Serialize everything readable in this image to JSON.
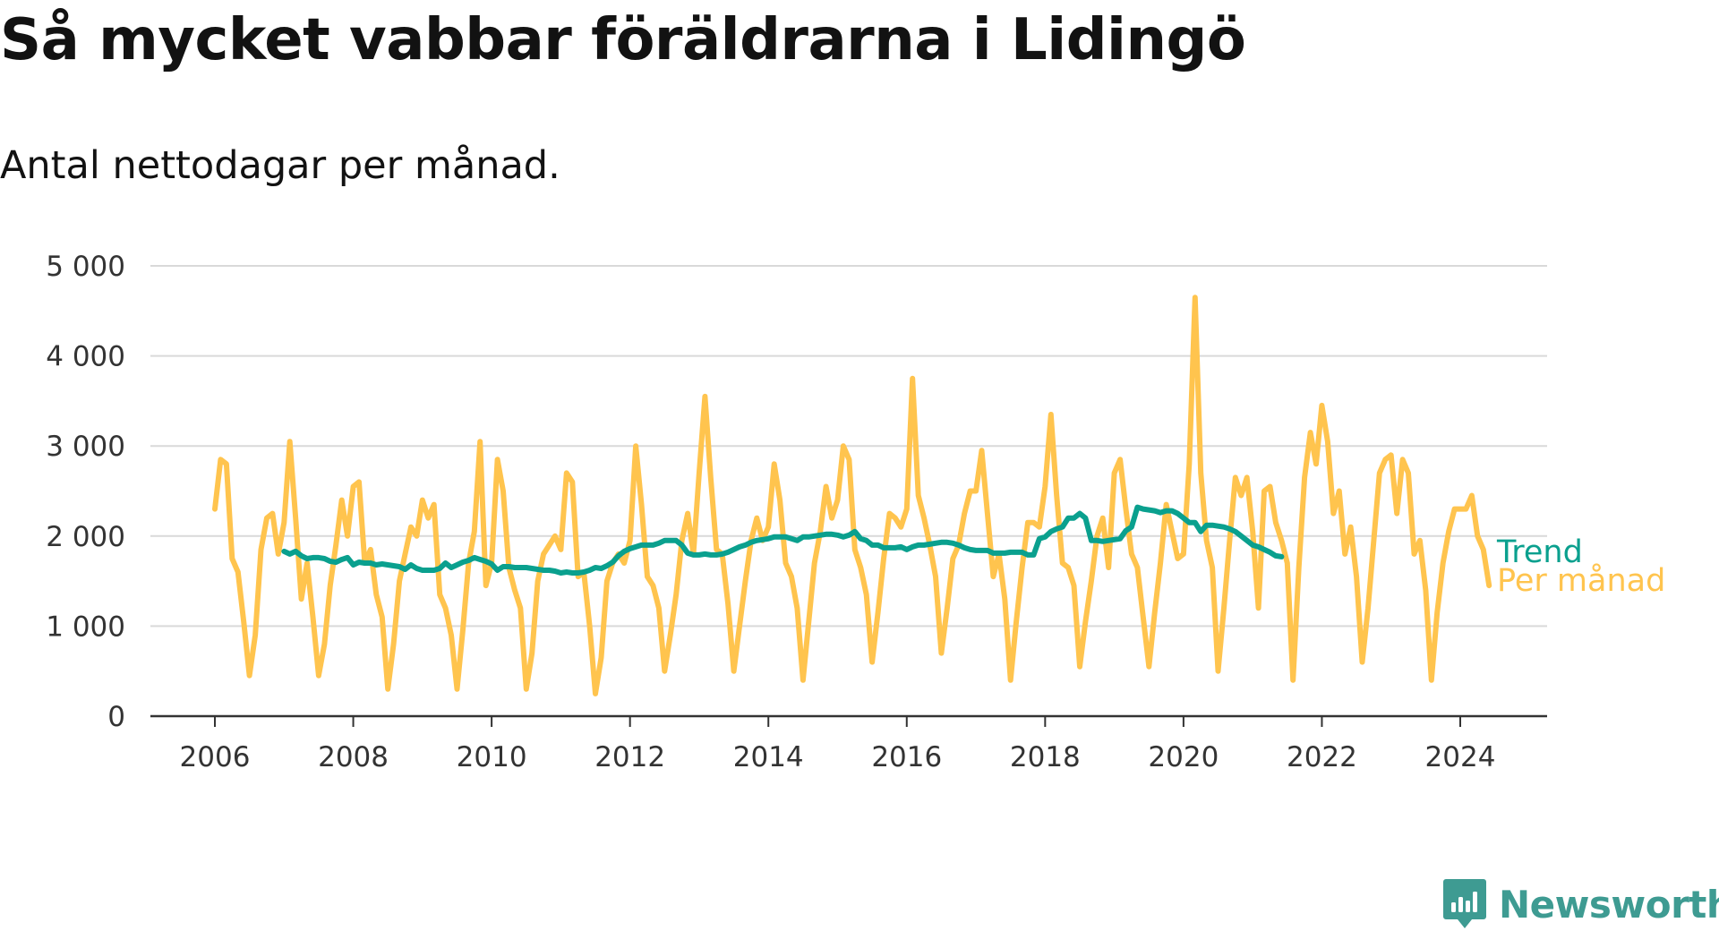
{
  "title": "Så mycket vabbar föräldrarna i Lidingö",
  "subtitle": "Antal nettodagar per månad.",
  "brand": {
    "name": "Newsworthy",
    "icon": "bar-chart-badge-icon",
    "color": "#3e9b92"
  },
  "chart_data": {
    "type": "line",
    "ylim": [
      0,
      5000
    ],
    "y_ticks": [
      0,
      1000,
      2000,
      3000,
      4000,
      5000
    ],
    "y_tick_labels": [
      "0",
      "1 000",
      "2 000",
      "3 000",
      "4 000",
      "5 000"
    ],
    "x_ticks": [
      2006,
      2008,
      2010,
      2012,
      2014,
      2016,
      2018,
      2020,
      2022,
      2024
    ],
    "x_tick_labels": [
      "2006",
      "2008",
      "2010",
      "2012",
      "2014",
      "2016",
      "2018",
      "2020",
      "2022",
      "2024"
    ],
    "grid": true,
    "legend": "end-of-line labels",
    "series": [
      {
        "name": "Per månad",
        "color": "#ffc44e",
        "start": "2006-01",
        "values": [
          2300,
          2850,
          2800,
          1750,
          1600,
          1050,
          450,
          900,
          1850,
          2200,
          2250,
          1800,
          2150,
          3050,
          2200,
          1300,
          1700,
          1100,
          450,
          800,
          1450,
          1900,
          2400,
          2000,
          2550,
          2600,
          1700,
          1850,
          1350,
          1100,
          300,
          800,
          1500,
          1800,
          2100,
          2000,
          2400,
          2200,
          2350,
          1350,
          1200,
          900,
          300,
          950,
          1700,
          2050,
          3050,
          1450,
          1700,
          2850,
          2500,
          1650,
          1400,
          1200,
          300,
          700,
          1500,
          1800,
          1900,
          2000,
          1850,
          2700,
          2600,
          1550,
          1600,
          1000,
          250,
          650,
          1500,
          1700,
          1800,
          1700,
          1950,
          3000,
          2350,
          1550,
          1450,
          1200,
          500,
          900,
          1350,
          1950,
          2250,
          1800,
          2700,
          3550,
          2650,
          1850,
          1800,
          1250,
          500,
          1000,
          1500,
          1950,
          2200,
          1950,
          2100,
          2800,
          2400,
          1700,
          1550,
          1200,
          400,
          1050,
          1700,
          2050,
          2550,
          2200,
          2400,
          3000,
          2850,
          1850,
          1650,
          1350,
          600,
          1150,
          1750,
          2250,
          2200,
          2100,
          2300,
          3750,
          2450,
          2200,
          1900,
          1550,
          700,
          1200,
          1750,
          1900,
          2250,
          2500,
          2500,
          2950,
          2250,
          1550,
          1800,
          1300,
          400,
          1050,
          1650,
          2150,
          2150,
          2100,
          2550,
          3350,
          2450,
          1700,
          1650,
          1450,
          550,
          1050,
          1500,
          2000,
          2200,
          1650,
          2700,
          2850,
          2300,
          1800,
          1650,
          1100,
          550,
          1150,
          1700,
          2350,
          2050,
          1750,
          1800,
          2800,
          4650,
          2700,
          1950,
          1650,
          500,
          1200,
          1950,
          2650,
          2450,
          2650,
          2050,
          1200,
          2500,
          2550,
          2150,
          1950,
          1700,
          400,
          1650,
          2650,
          3150,
          2800,
          3450,
          3050,
          2250,
          2500,
          1800,
          2100,
          1550,
          600,
          1200,
          1950,
          2700,
          2850,
          2900,
          2250,
          2850,
          2700,
          1800,
          1950,
          1400,
          400,
          1150,
          1700,
          2050,
          2300,
          2300,
          2300,
          2450,
          2000,
          1850,
          1450
        ]
      },
      {
        "name": "Trend",
        "color": "#0aa08e",
        "start": "2007-01",
        "values": [
          1830,
          1800,
          1830,
          1780,
          1750,
          1760,
          1760,
          1750,
          1720,
          1710,
          1740,
          1760,
          1680,
          1710,
          1700,
          1700,
          1680,
          1690,
          1680,
          1670,
          1660,
          1630,
          1680,
          1640,
          1620,
          1620,
          1620,
          1640,
          1700,
          1650,
          1680,
          1710,
          1730,
          1760,
          1740,
          1720,
          1690,
          1620,
          1660,
          1660,
          1650,
          1650,
          1650,
          1640,
          1630,
          1620,
          1620,
          1610,
          1590,
          1600,
          1590,
          1590,
          1600,
          1620,
          1650,
          1640,
          1670,
          1710,
          1780,
          1830,
          1860,
          1880,
          1900,
          1900,
          1900,
          1920,
          1950,
          1950,
          1950,
          1900,
          1810,
          1790,
          1790,
          1800,
          1790,
          1790,
          1800,
          1820,
          1850,
          1880,
          1900,
          1930,
          1950,
          1960,
          1970,
          1990,
          1990,
          1990,
          1970,
          1950,
          1990,
          1990,
          2000,
          2010,
          2020,
          2020,
          2010,
          1990,
          2010,
          2050,
          1970,
          1950,
          1900,
          1900,
          1870,
          1870,
          1870,
          1880,
          1850,
          1880,
          1900,
          1900,
          1910,
          1920,
          1930,
          1930,
          1920,
          1900,
          1870,
          1850,
          1840,
          1840,
          1840,
          1810,
          1810,
          1810,
          1820,
          1820,
          1820,
          1790,
          1790,
          1970,
          1990,
          2050,
          2080,
          2100,
          2200,
          2200,
          2250,
          2200,
          1950,
          1950,
          1940,
          1950,
          1960,
          1970,
          2060,
          2100,
          2320,
          2300,
          2290,
          2280,
          2260,
          2280,
          2280,
          2250,
          2200,
          2150,
          2150,
          2050,
          2120,
          2120,
          2110,
          2100,
          2080,
          2050,
          2000,
          1950,
          1900,
          1880,
          1850,
          1820,
          1780,
          1770
        ]
      }
    ]
  }
}
